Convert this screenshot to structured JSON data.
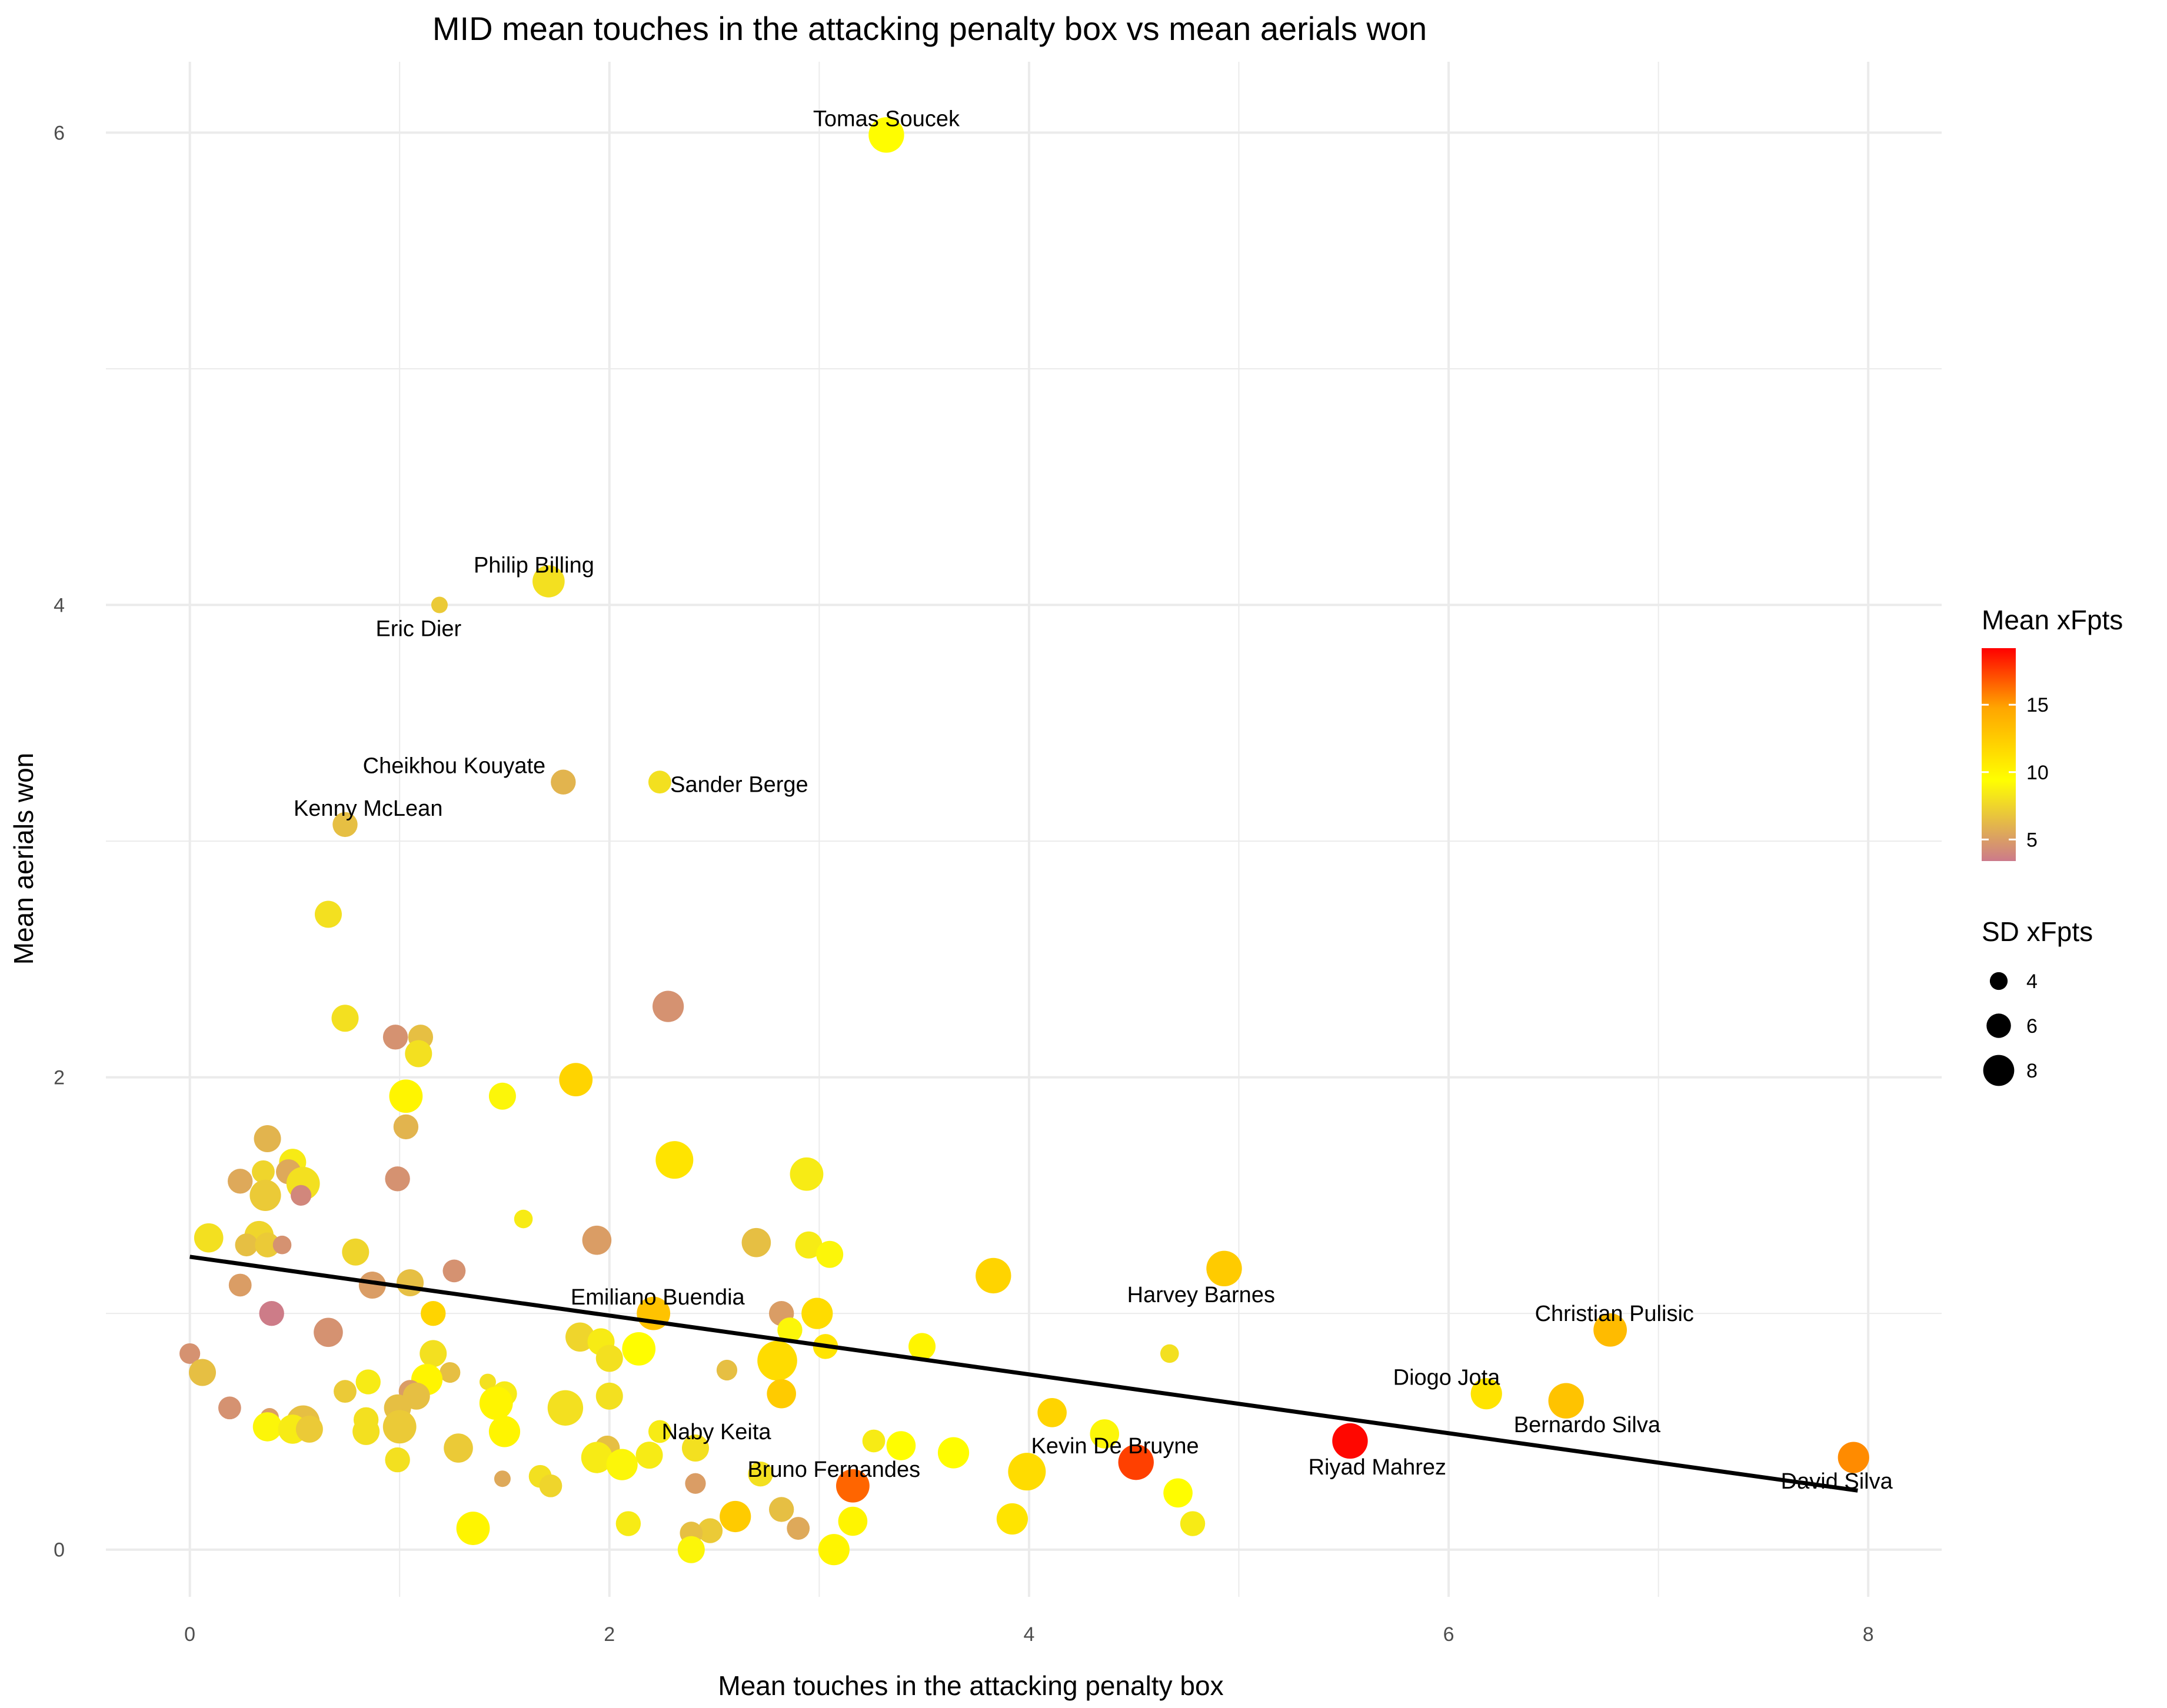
{
  "chart_data": {
    "type": "scatter",
    "title": "MID mean touches in the attacking penalty box vs mean aerials won",
    "xlabel": "Mean touches in the attacking penalty box",
    "ylabel": "Mean aerials won",
    "xlim": [
      -0.4,
      8.35
    ],
    "ylim": [
      -0.2,
      6.3
    ],
    "x_ticks": [
      "0",
      "2",
      "4",
      "6",
      "8"
    ],
    "y_ticks": [
      "0",
      "2",
      "4",
      "6"
    ],
    "grid": true,
    "colors": {
      "low": "#cc7a8a",
      "mid": "#ffff00",
      "high": "#ff0000",
      "trend": "#000000",
      "grid": "#ebebeb"
    },
    "trend_line": {
      "x": [
        0,
        7.95
      ],
      "y": [
        1.24,
        0.25
      ]
    },
    "legend_color": {
      "title": "Mean xFpts",
      "labels": [
        "15",
        "10",
        "5"
      ],
      "values": [
        15,
        10,
        5
      ],
      "range": [
        3.4,
        19.2
      ],
      "placement": "right"
    },
    "legend_size": {
      "title": "SD xFpts",
      "labels": [
        "4",
        "6",
        "8"
      ],
      "values": [
        4,
        6,
        8
      ],
      "placement": "right"
    },
    "labeled_points": [
      {
        "label": "Tomas Soucek",
        "x": 3.32,
        "y": 5.99,
        "xfpts": 9.5,
        "sd": 7.0,
        "anchor": "middle",
        "ldx": 0.0,
        "ldy": 0.07
      },
      {
        "label": "Philip Billing",
        "x": 1.71,
        "y": 4.1,
        "xfpts": 8.0,
        "sd": 6.2,
        "anchor": "middle",
        "ldx": -0.07,
        "ldy": 0.07
      },
      {
        "label": "Eric Dier",
        "x": 1.19,
        "y": 4.0,
        "xfpts": 7.0,
        "sd": 2.5,
        "anchor": "middle",
        "ldx": -0.1,
        "ldy": -0.1
      },
      {
        "label": "Cheikhou Kouyate",
        "x": 1.78,
        "y": 3.25,
        "xfpts": 6.0,
        "sd": 4.5,
        "anchor": "middle",
        "ldx": -0.52,
        "ldy": 0.07
      },
      {
        "label": "Sander Berge",
        "x": 2.24,
        "y": 3.25,
        "xfpts": 8.0,
        "sd": 4.0,
        "anchor": "start",
        "ldx": 0.05,
        "ldy": -0.01
      },
      {
        "label": "Kenny McLean",
        "x": 0.74,
        "y": 3.07,
        "xfpts": 6.5,
        "sd": 4.5,
        "anchor": "middle",
        "ldx": 0.11,
        "ldy": 0.07
      },
      {
        "label": "Emiliano Buendia",
        "x": 2.21,
        "y": 1.0,
        "xfpts": 13.0,
        "sd": 6.5,
        "anchor": "middle",
        "ldx": 0.02,
        "ldy": 0.07
      },
      {
        "label": "Harvey Barnes",
        "x": 4.67,
        "y": 0.83,
        "xfpts": 8.0,
        "sd": 3.0,
        "anchor": "middle",
        "ldx": 0.15,
        "ldy": 0.25
      },
      {
        "label": "Christian Pulisic",
        "x": 6.77,
        "y": 0.93,
        "xfpts": 13.5,
        "sd": 6.5,
        "anchor": "middle",
        "ldx": 0.02,
        "ldy": 0.07
      },
      {
        "label": "Diogo Jota",
        "x": 6.18,
        "y": 0.66,
        "xfpts": 11.0,
        "sd": 6.0,
        "anchor": "middle",
        "ldx": -0.19,
        "ldy": 0.07
      },
      {
        "label": "Bernardo Silva",
        "x": 6.56,
        "y": 0.63,
        "xfpts": 13.0,
        "sd": 7.0,
        "anchor": "middle",
        "ldx": 0.1,
        "ldy": -0.1
      },
      {
        "label": "Naby Keita",
        "x": 2.41,
        "y": 0.43,
        "xfpts": 8.0,
        "sd": 5.0,
        "anchor": "middle",
        "ldx": 0.1,
        "ldy": 0.07
      },
      {
        "label": "Kevin De Bruyne",
        "x": 4.51,
        "y": 0.37,
        "xfpts": 17.5,
        "sd": 7.0,
        "anchor": "middle",
        "ldx": -0.1,
        "ldy": 0.07
      },
      {
        "label": "Riyad Mahrez",
        "x": 5.53,
        "y": 0.46,
        "xfpts": 19.0,
        "sd": 7.0,
        "anchor": "middle",
        "ldx": 0.13,
        "ldy": -0.11
      },
      {
        "label": "Bruno Fernandes",
        "x": 3.16,
        "y": 0.27,
        "xfpts": 16.5,
        "sd": 6.5,
        "anchor": "middle",
        "ldx": -0.09,
        "ldy": 0.07
      },
      {
        "label": "David Silva",
        "x": 7.93,
        "y": 0.39,
        "xfpts": 15.5,
        "sd": 6.0,
        "anchor": "middle",
        "ldx": -0.08,
        "ldy": -0.1
      }
    ],
    "points": [
      {
        "x": 1.84,
        "y": 1.99,
        "xfpts": 12.0,
        "sd": 6.5
      },
      {
        "x": 2.31,
        "y": 1.65,
        "xfpts": 11.0,
        "sd": 7.5
      },
      {
        "x": 2.94,
        "y": 1.59,
        "xfpts": 8.5,
        "sd": 6.5
      },
      {
        "x": 2.28,
        "y": 2.3,
        "xfpts": 4.5,
        "sd": 6.0
      },
      {
        "x": 1.03,
        "y": 1.92,
        "xfpts": 10.0,
        "sd": 6.5
      },
      {
        "x": 1.49,
        "y": 1.92,
        "xfpts": 9.0,
        "sd": 5.0
      },
      {
        "x": 0.66,
        "y": 2.69,
        "xfpts": 8.0,
        "sd": 5.0
      },
      {
        "x": 0.74,
        "y": 2.25,
        "xfpts": 8.0,
        "sd": 5.0
      },
      {
        "x": 0.98,
        "y": 2.17,
        "xfpts": 4.5,
        "sd": 4.5
      },
      {
        "x": 1.1,
        "y": 2.17,
        "xfpts": 6.5,
        "sd": 4.5
      },
      {
        "x": 1.09,
        "y": 2.1,
        "xfpts": 8.0,
        "sd": 5.0
      },
      {
        "x": 1.03,
        "y": 1.79,
        "xfpts": 6.0,
        "sd": 4.5
      },
      {
        "x": 0.99,
        "y": 1.57,
        "xfpts": 4.5,
        "sd": 4.5
      },
      {
        "x": 0.37,
        "y": 1.74,
        "xfpts": 6.0,
        "sd": 5.0
      },
      {
        "x": 0.49,
        "y": 1.64,
        "xfpts": 8.5,
        "sd": 5.0
      },
      {
        "x": 0.35,
        "y": 1.6,
        "xfpts": 7.5,
        "sd": 4.0
      },
      {
        "x": 0.47,
        "y": 1.6,
        "xfpts": 5.5,
        "sd": 4.5
      },
      {
        "x": 0.24,
        "y": 1.56,
        "xfpts": 5.5,
        "sd": 4.5
      },
      {
        "x": 0.54,
        "y": 1.55,
        "xfpts": 8.0,
        "sd": 6.5
      },
      {
        "x": 0.36,
        "y": 1.5,
        "xfpts": 7.0,
        "sd": 6.0
      },
      {
        "x": 0.53,
        "y": 1.5,
        "xfpts": 4.0,
        "sd": 3.5
      },
      {
        "x": 1.59,
        "y": 1.4,
        "xfpts": 8.5,
        "sd": 3.0
      },
      {
        "x": 0.09,
        "y": 1.32,
        "xfpts": 8.0,
        "sd": 5.5
      },
      {
        "x": 0.33,
        "y": 1.33,
        "xfpts": 7.5,
        "sd": 5.5
      },
      {
        "x": 0.27,
        "y": 1.29,
        "xfpts": 6.5,
        "sd": 4.0
      },
      {
        "x": 0.37,
        "y": 1.29,
        "xfpts": 7.0,
        "sd": 4.5
      },
      {
        "x": 0.44,
        "y": 1.29,
        "xfpts": 4.5,
        "sd": 3.0
      },
      {
        "x": 0.79,
        "y": 1.26,
        "xfpts": 7.5,
        "sd": 5.0
      },
      {
        "x": 1.94,
        "y": 1.31,
        "xfpts": 5.0,
        "sd": 5.5
      },
      {
        "x": 2.7,
        "y": 1.3,
        "xfpts": 6.5,
        "sd": 5.5
      },
      {
        "x": 2.95,
        "y": 1.29,
        "xfpts": 8.5,
        "sd": 5.0
      },
      {
        "x": 3.05,
        "y": 1.25,
        "xfpts": 9.0,
        "sd": 5.0
      },
      {
        "x": 1.26,
        "y": 1.18,
        "xfpts": 4.5,
        "sd": 4.0
      },
      {
        "x": 1.05,
        "y": 1.13,
        "xfpts": 6.5,
        "sd": 5.0
      },
      {
        "x": 0.87,
        "y": 1.12,
        "xfpts": 5.0,
        "sd": 5.0
      },
      {
        "x": 0.24,
        "y": 1.12,
        "xfpts": 5.0,
        "sd": 4.0
      },
      {
        "x": 3.83,
        "y": 1.16,
        "xfpts": 12.0,
        "sd": 7.0
      },
      {
        "x": 4.93,
        "y": 1.19,
        "xfpts": 12.5,
        "sd": 7.0
      },
      {
        "x": 0.39,
        "y": 1.0,
        "xfpts": 3.5,
        "sd": 4.5
      },
      {
        "x": 1.16,
        "y": 1.0,
        "xfpts": 12.0,
        "sd": 4.5
      },
      {
        "x": 2.82,
        "y": 1.0,
        "xfpts": 5.0,
        "sd": 4.5
      },
      {
        "x": 2.99,
        "y": 1.0,
        "xfpts": 11.5,
        "sd": 6.0
      },
      {
        "x": 2.86,
        "y": 0.93,
        "xfpts": 9.0,
        "sd": 4.5
      },
      {
        "x": 0.66,
        "y": 0.92,
        "xfpts": 4.5,
        "sd": 5.5
      },
      {
        "x": 1.86,
        "y": 0.9,
        "xfpts": 7.5,
        "sd": 5.5
      },
      {
        "x": 1.96,
        "y": 0.88,
        "xfpts": 8.5,
        "sd": 5.0
      },
      {
        "x": 2.14,
        "y": 0.85,
        "xfpts": 9.5,
        "sd": 6.5
      },
      {
        "x": 3.03,
        "y": 0.86,
        "xfpts": 11.0,
        "sd": 4.5
      },
      {
        "x": 3.49,
        "y": 0.86,
        "xfpts": 10.0,
        "sd": 5.0
      },
      {
        "x": 1.16,
        "y": 0.83,
        "xfpts": 8.0,
        "sd": 5.0
      },
      {
        "x": 2.0,
        "y": 0.81,
        "xfpts": 8.0,
        "sd": 5.0
      },
      {
        "x": 0.0,
        "y": 0.83,
        "xfpts": 4.5,
        "sd": 3.5
      },
      {
        "x": 2.8,
        "y": 0.8,
        "xfpts": 11.5,
        "sd": 8.0
      },
      {
        "x": 0.06,
        "y": 0.75,
        "xfpts": 6.5,
        "sd": 5.0
      },
      {
        "x": 1.24,
        "y": 0.75,
        "xfpts": 6.5,
        "sd": 3.5
      },
      {
        "x": 2.56,
        "y": 0.76,
        "xfpts": 6.5,
        "sd": 3.5
      },
      {
        "x": 1.13,
        "y": 0.72,
        "xfpts": 10.0,
        "sd": 6.0
      },
      {
        "x": 0.85,
        "y": 0.71,
        "xfpts": 8.5,
        "sd": 4.5
      },
      {
        "x": 1.42,
        "y": 0.71,
        "xfpts": 8.0,
        "sd": 2.5
      },
      {
        "x": 0.74,
        "y": 0.67,
        "xfpts": 7.0,
        "sd": 4.0
      },
      {
        "x": 1.05,
        "y": 0.67,
        "xfpts": 5.0,
        "sd": 4.0
      },
      {
        "x": 1.08,
        "y": 0.65,
        "xfpts": 6.5,
        "sd": 5.0
      },
      {
        "x": 1.5,
        "y": 0.66,
        "xfpts": 8.5,
        "sd": 4.5
      },
      {
        "x": 2.0,
        "y": 0.65,
        "xfpts": 8.0,
        "sd": 5.0
      },
      {
        "x": 2.82,
        "y": 0.66,
        "xfpts": 12.5,
        "sd": 5.5
      },
      {
        "x": 1.46,
        "y": 0.62,
        "xfpts": 10.0,
        "sd": 6.5
      },
      {
        "x": 1.79,
        "y": 0.6,
        "xfpts": 8.0,
        "sd": 7.0
      },
      {
        "x": 0.99,
        "y": 0.6,
        "xfpts": 6.5,
        "sd": 5.0
      },
      {
        "x": 0.19,
        "y": 0.6,
        "xfpts": 4.5,
        "sd": 4.0
      },
      {
        "x": 4.11,
        "y": 0.58,
        "xfpts": 12.0,
        "sd": 5.5
      },
      {
        "x": 0.38,
        "y": 0.56,
        "xfpts": 5.0,
        "sd": 3.0
      },
      {
        "x": 0.54,
        "y": 0.54,
        "xfpts": 6.5,
        "sd": 6.5
      },
      {
        "x": 0.84,
        "y": 0.55,
        "xfpts": 8.0,
        "sd": 4.5
      },
      {
        "x": 0.37,
        "y": 0.52,
        "xfpts": 9.0,
        "sd": 5.5
      },
      {
        "x": 0.49,
        "y": 0.51,
        "xfpts": 8.5,
        "sd": 5.5
      },
      {
        "x": 0.57,
        "y": 0.51,
        "xfpts": 7.0,
        "sd": 5.0
      },
      {
        "x": 1.0,
        "y": 0.52,
        "xfpts": 7.0,
        "sd": 6.5
      },
      {
        "x": 0.84,
        "y": 0.5,
        "xfpts": 8.0,
        "sd": 5.0
      },
      {
        "x": 1.5,
        "y": 0.5,
        "xfpts": 10.0,
        "sd": 6.0
      },
      {
        "x": 2.24,
        "y": 0.5,
        "xfpts": 8.5,
        "sd": 4.0
      },
      {
        "x": 4.36,
        "y": 0.49,
        "xfpts": 9.0,
        "sd": 5.5
      },
      {
        "x": 3.26,
        "y": 0.46,
        "xfpts": 8.5,
        "sd": 4.0
      },
      {
        "x": 3.39,
        "y": 0.44,
        "xfpts": 9.5,
        "sd": 5.5
      },
      {
        "x": 1.28,
        "y": 0.43,
        "xfpts": 7.0,
        "sd": 5.5
      },
      {
        "x": 1.99,
        "y": 0.43,
        "xfpts": 6.5,
        "sd": 4.5
      },
      {
        "x": 1.94,
        "y": 0.39,
        "xfpts": 8.5,
        "sd": 6.0
      },
      {
        "x": 2.19,
        "y": 0.4,
        "xfpts": 8.5,
        "sd": 5.0
      },
      {
        "x": 3.64,
        "y": 0.41,
        "xfpts": 9.5,
        "sd": 6.0
      },
      {
        "x": 0.99,
        "y": 0.38,
        "xfpts": 8.0,
        "sd": 4.5
      },
      {
        "x": 2.06,
        "y": 0.36,
        "xfpts": 9.0,
        "sd": 6.0
      },
      {
        "x": 3.99,
        "y": 0.33,
        "xfpts": 11.5,
        "sd": 7.5
      },
      {
        "x": 2.72,
        "y": 0.32,
        "xfpts": 8.0,
        "sd": 4.5
      },
      {
        "x": 1.67,
        "y": 0.31,
        "xfpts": 8.0,
        "sd": 4.0
      },
      {
        "x": 1.49,
        "y": 0.3,
        "xfpts": 5.5,
        "sd": 2.5
      },
      {
        "x": 1.72,
        "y": 0.27,
        "xfpts": 7.5,
        "sd": 4.0
      },
      {
        "x": 2.41,
        "y": 0.28,
        "xfpts": 5.0,
        "sd": 3.5
      },
      {
        "x": 4.71,
        "y": 0.24,
        "xfpts": 9.5,
        "sd": 5.5
      },
      {
        "x": 2.82,
        "y": 0.17,
        "xfpts": 6.5,
        "sd": 4.5
      },
      {
        "x": 2.6,
        "y": 0.14,
        "xfpts": 12.5,
        "sd": 6.0
      },
      {
        "x": 3.92,
        "y": 0.13,
        "xfpts": 11.0,
        "sd": 6.0
      },
      {
        "x": 3.16,
        "y": 0.12,
        "xfpts": 10.0,
        "sd": 5.5
      },
      {
        "x": 2.09,
        "y": 0.11,
        "xfpts": 8.5,
        "sd": 4.5
      },
      {
        "x": 4.78,
        "y": 0.11,
        "xfpts": 8.5,
        "sd": 4.5
      },
      {
        "x": 2.9,
        "y": 0.09,
        "xfpts": 5.5,
        "sd": 4.0
      },
      {
        "x": 1.35,
        "y": 0.09,
        "xfpts": 10.0,
        "sd": 6.5
      },
      {
        "x": 2.48,
        "y": 0.08,
        "xfpts": 7.0,
        "sd": 4.5
      },
      {
        "x": 2.39,
        "y": 0.07,
        "xfpts": 6.5,
        "sd": 4.0
      },
      {
        "x": 3.07,
        "y": 0.0,
        "xfpts": 10.0,
        "sd": 6.0
      },
      {
        "x": 2.39,
        "y": 0.0,
        "xfpts": 9.0,
        "sd": 5.0
      }
    ]
  }
}
